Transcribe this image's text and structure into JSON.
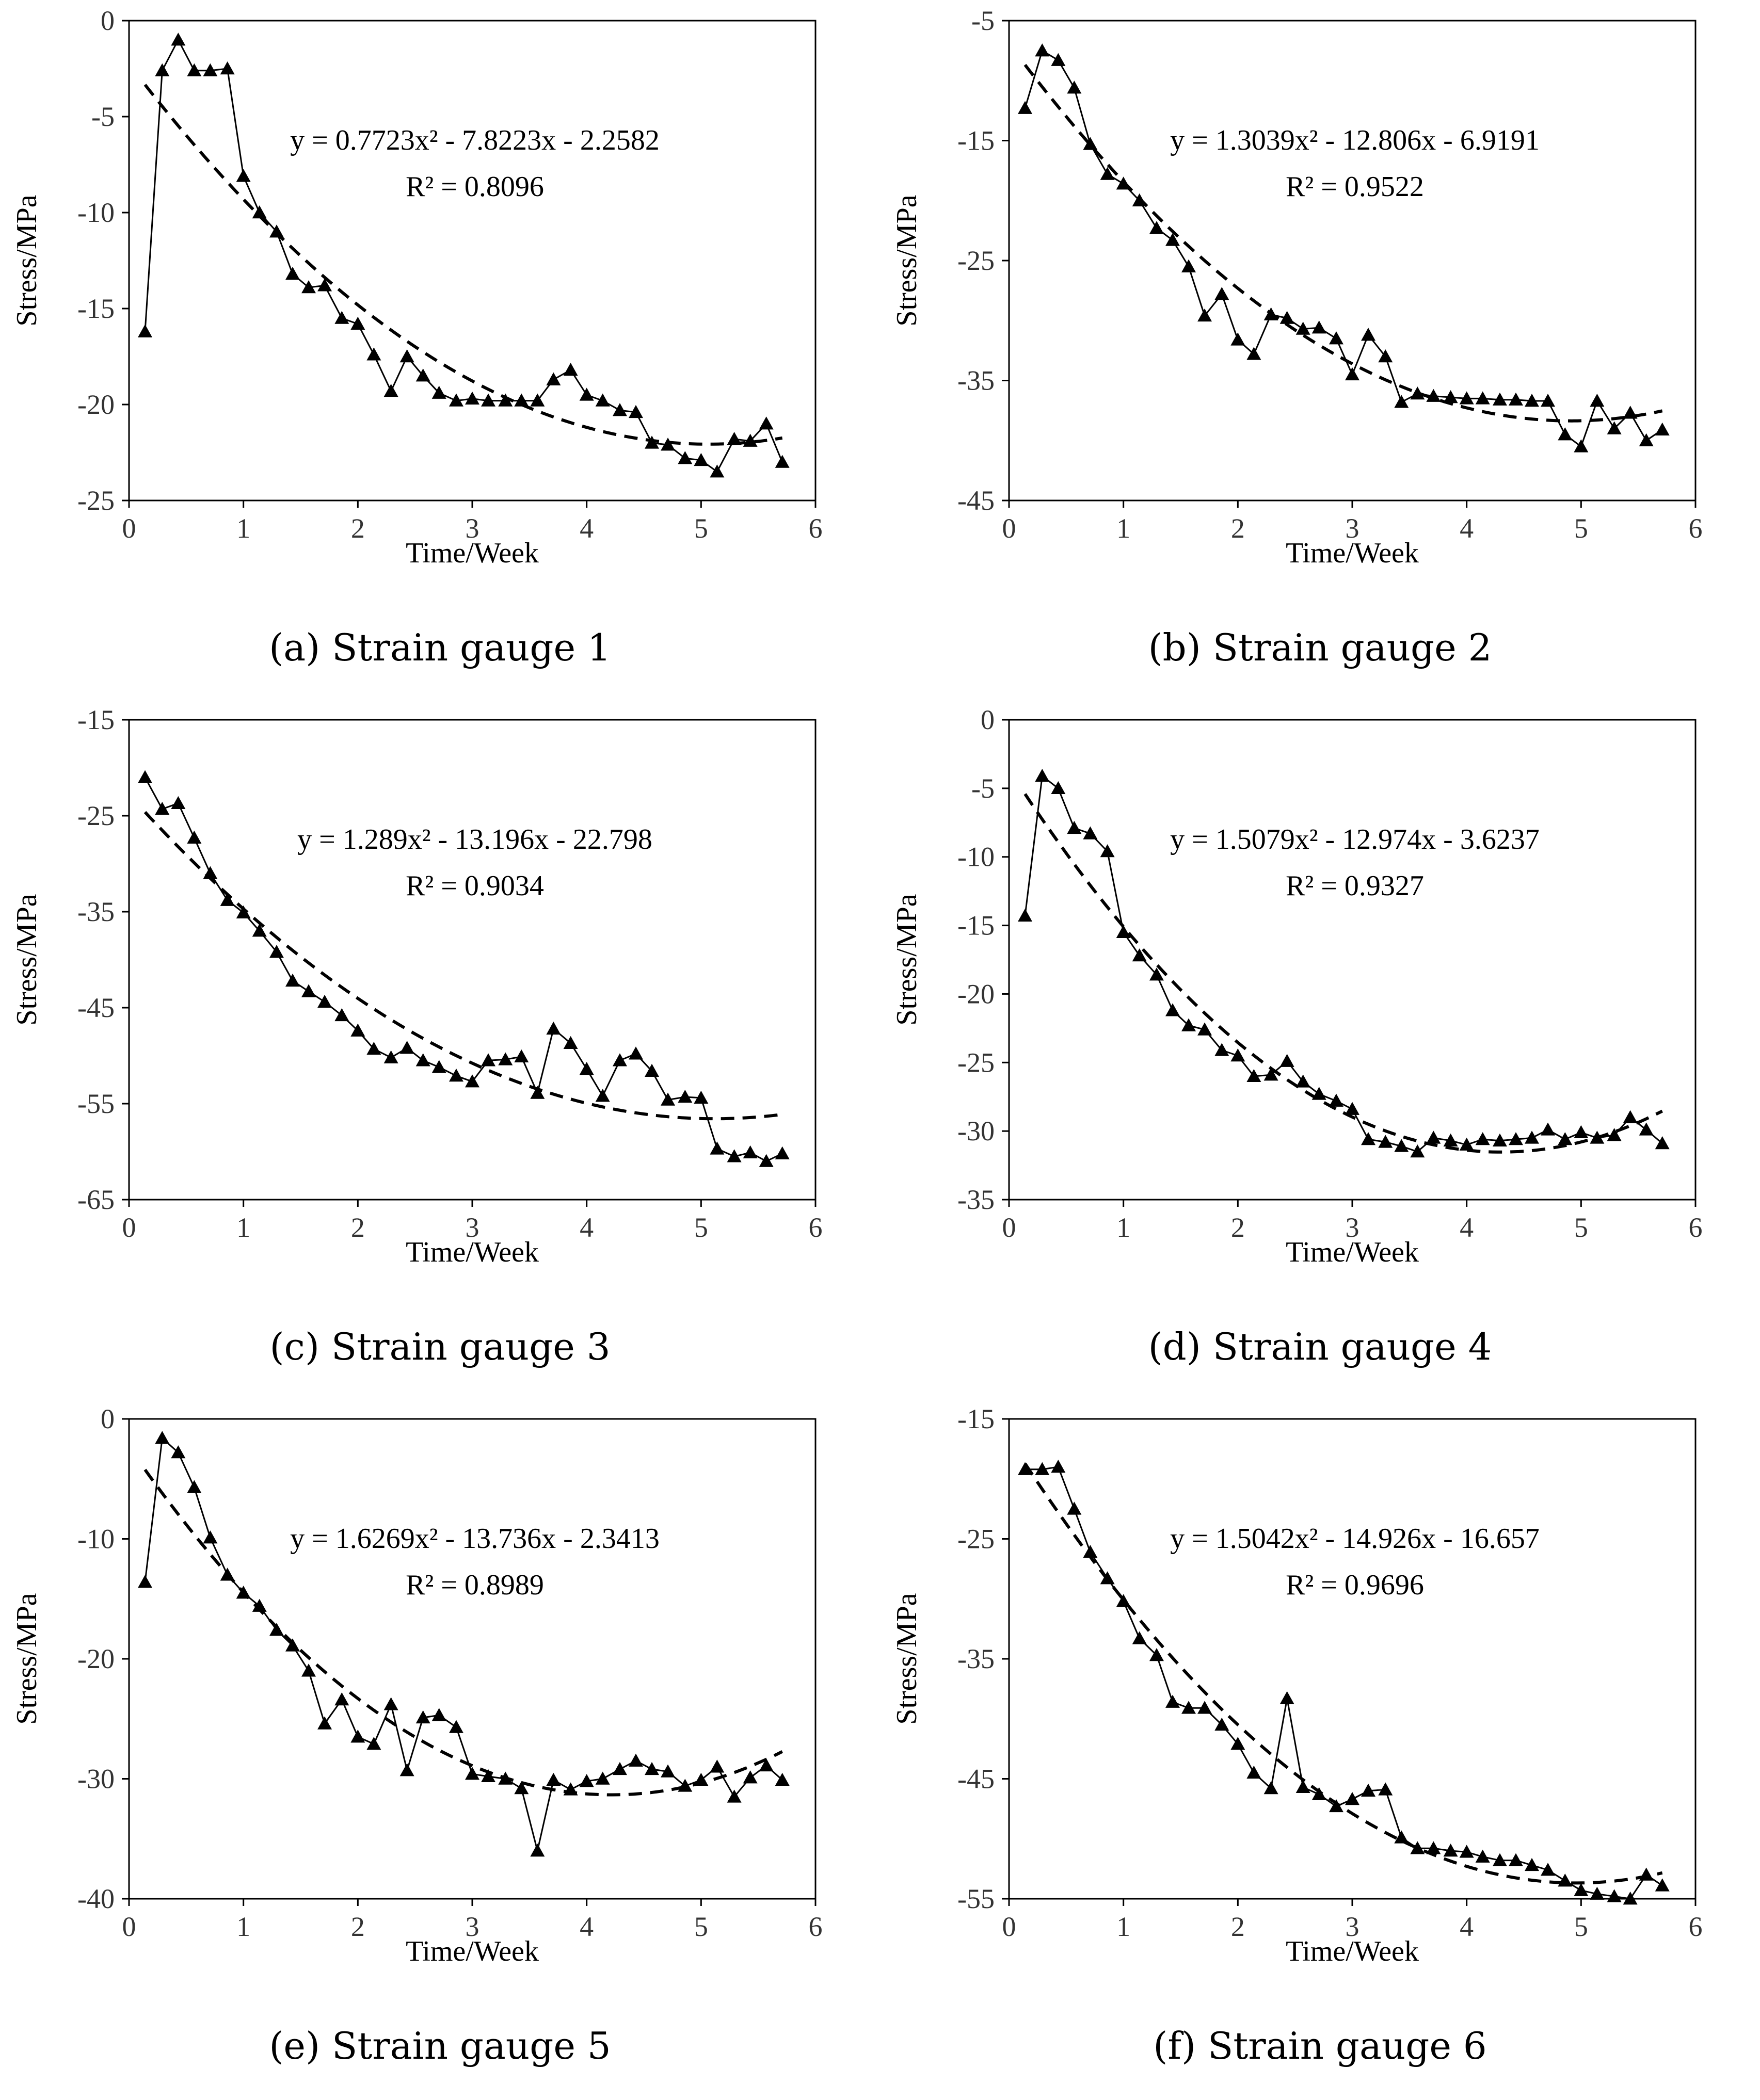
{
  "chart_data": [
    {
      "type": "line",
      "panel_id": "a",
      "caption": "(a) Strain gauge 1",
      "xlabel": "Time/Week",
      "ylabel": "Stress/MPa",
      "xlim": [
        0,
        6
      ],
      "ylim": [
        -25,
        0
      ],
      "xticks": [
        0,
        1,
        2,
        3,
        4,
        5,
        6
      ],
      "yticks": [
        0,
        -5,
        -10,
        -15,
        -20,
        -25
      ],
      "equation": "y = 0.7723x² - 7.8223x - 2.2582",
      "r2": "R² = 0.8096",
      "trend_coeffs": [
        0.7723,
        -7.8223,
        -2.2582
      ],
      "series": [
        {
          "name": "Stress",
          "x": [
            0.14,
            0.29,
            0.43,
            0.57,
            0.71,
            0.86,
            1.0,
            1.14,
            1.29,
            1.43,
            1.57,
            1.71,
            1.86,
            2.0,
            2.14,
            2.29,
            2.43,
            2.57,
            2.71,
            2.86,
            3.0,
            3.14,
            3.29,
            3.43,
            3.57,
            3.71,
            3.86,
            4.0,
            4.14,
            4.29,
            4.43,
            4.57,
            4.71,
            4.86,
            5.0,
            5.14,
            5.29,
            5.43,
            5.57,
            5.71
          ],
          "y": [
            -16.2,
            -2.6,
            -1.0,
            -2.6,
            -2.6,
            -2.5,
            -8.1,
            -10.0,
            -11.0,
            -13.2,
            -13.9,
            -13.8,
            -15.5,
            -15.8,
            -17.4,
            -19.3,
            -17.5,
            -18.5,
            -19.4,
            -19.8,
            -19.7,
            -19.8,
            -19.8,
            -19.8,
            -19.8,
            -18.7,
            -18.2,
            -19.5,
            -19.8,
            -20.3,
            -20.4,
            -22.0,
            -22.1,
            -22.8,
            -22.9,
            -23.5,
            -21.8,
            -21.9,
            -21.0,
            -23.0
          ]
        }
      ]
    },
    {
      "type": "line",
      "panel_id": "b",
      "caption": "(b) Strain gauge 2",
      "xlabel": "Time/Week",
      "ylabel": "Stress/MPa",
      "xlim": [
        0,
        6
      ],
      "ylim": [
        -45,
        -5
      ],
      "xticks": [
        0,
        1,
        2,
        3,
        4,
        5,
        6
      ],
      "yticks": [
        -5,
        -15,
        -25,
        -35,
        -45
      ],
      "equation": "y = 1.3039x² - 12.806x - 6.9191",
      "r2": "R² = 0.9522",
      "trend_coeffs": [
        1.3039,
        -12.806,
        -6.9191
      ],
      "series": [
        {
          "name": "Stress",
          "x": [
            0.14,
            0.29,
            0.43,
            0.57,
            0.71,
            0.86,
            1.0,
            1.14,
            1.29,
            1.43,
            1.57,
            1.71,
            1.86,
            2.0,
            2.14,
            2.29,
            2.43,
            2.57,
            2.71,
            2.86,
            3.0,
            3.14,
            3.29,
            3.43,
            3.57,
            3.71,
            3.86,
            4.0,
            4.14,
            4.29,
            4.43,
            4.57,
            4.71,
            4.86,
            5.0,
            5.14,
            5.29,
            5.43,
            5.57,
            5.71
          ],
          "y": [
            -12.3,
            -7.5,
            -8.3,
            -10.6,
            -15.3,
            -17.8,
            -18.6,
            -20.0,
            -22.3,
            -23.3,
            -25.5,
            -29.6,
            -27.8,
            -31.6,
            -32.8,
            -29.5,
            -29.8,
            -30.7,
            -30.6,
            -31.5,
            -34.5,
            -31.2,
            -33.0,
            -36.8,
            -36.1,
            -36.3,
            -36.4,
            -36.5,
            -36.5,
            -36.6,
            -36.6,
            -36.7,
            -36.7,
            -39.5,
            -40.5,
            -36.7,
            -39.0,
            -37.7,
            -40.0,
            -39.1
          ]
        }
      ]
    },
    {
      "type": "line",
      "panel_id": "c",
      "caption": "(c) Strain gauge 3",
      "xlabel": "Time/Week",
      "ylabel": "Stress/MPa",
      "xlim": [
        0,
        6
      ],
      "ylim": [
        -65,
        -15
      ],
      "xticks": [
        0,
        1,
        2,
        3,
        4,
        5,
        6
      ],
      "yticks": [
        -15,
        -25,
        -35,
        -45,
        -55,
        -65
      ],
      "equation": "y = 1.289x² - 13.196x - 22.798",
      "r2": "R² = 0.9034",
      "trend_coeffs": [
        1.289,
        -13.196,
        -22.798
      ],
      "series": [
        {
          "name": "Stress",
          "x": [
            0.14,
            0.29,
            0.43,
            0.57,
            0.71,
            0.86,
            1.0,
            1.14,
            1.29,
            1.43,
            1.57,
            1.71,
            1.86,
            2.0,
            2.14,
            2.29,
            2.43,
            2.57,
            2.71,
            2.86,
            3.0,
            3.14,
            3.29,
            3.43,
            3.57,
            3.71,
            3.86,
            4.0,
            4.14,
            4.29,
            4.43,
            4.57,
            4.71,
            4.86,
            5.0,
            5.14,
            5.29,
            5.43,
            5.57,
            5.71
          ],
          "y": [
            -21.0,
            -24.3,
            -23.7,
            -27.3,
            -31.0,
            -33.8,
            -35.1,
            -37.0,
            -39.2,
            -42.2,
            -43.3,
            -44.4,
            -45.8,
            -47.4,
            -49.3,
            -50.2,
            -49.2,
            -50.5,
            -51.2,
            -52.1,
            -52.7,
            -50.5,
            -50.4,
            -50.1,
            -53.9,
            -47.2,
            -48.7,
            -51.4,
            -54.2,
            -50.5,
            -49.8,
            -51.6,
            -54.6,
            -54.3,
            -54.4,
            -59.7,
            -60.5,
            -60.1,
            -61.0,
            -60.2
          ]
        }
      ]
    },
    {
      "type": "line",
      "panel_id": "d",
      "caption": "(d) Strain gauge 4",
      "xlabel": "Time/Week",
      "ylabel": "Stress/MPa",
      "xlim": [
        0,
        6
      ],
      "ylim": [
        -35,
        0
      ],
      "xticks": [
        0,
        1,
        2,
        3,
        4,
        5,
        6
      ],
      "yticks": [
        0,
        -5,
        -10,
        -15,
        -20,
        -25,
        -30,
        -35
      ],
      "equation": "y = 1.5079x² - 12.974x - 3.6237",
      "r2": "R² = 0.9327",
      "trend_coeffs": [
        1.5079,
        -12.974,
        -3.6237
      ],
      "series": [
        {
          "name": "Stress",
          "x": [
            0.14,
            0.29,
            0.43,
            0.57,
            0.71,
            0.86,
            1.0,
            1.14,
            1.29,
            1.43,
            1.57,
            1.71,
            1.86,
            2.0,
            2.14,
            2.29,
            2.43,
            2.57,
            2.71,
            2.86,
            3.0,
            3.14,
            3.29,
            3.43,
            3.57,
            3.71,
            3.86,
            4.0,
            4.14,
            4.29,
            4.43,
            4.57,
            4.71,
            4.86,
            5.0,
            5.14,
            5.29,
            5.43,
            5.57,
            5.71
          ],
          "y": [
            -14.3,
            -4.1,
            -5.0,
            -7.9,
            -8.3,
            -9.6,
            -15.5,
            -17.2,
            -18.6,
            -21.2,
            -22.3,
            -22.6,
            -24.1,
            -24.5,
            -26.0,
            -25.9,
            -24.9,
            -26.4,
            -27.3,
            -27.8,
            -28.4,
            -30.6,
            -30.8,
            -31.1,
            -31.5,
            -30.5,
            -30.7,
            -31.0,
            -30.6,
            -30.7,
            -30.6,
            -30.5,
            -29.9,
            -30.6,
            -30.1,
            -30.5,
            -30.3,
            -29.0,
            -29.9,
            -30.9
          ]
        }
      ]
    },
    {
      "type": "line",
      "panel_id": "e",
      "caption": "(e) Strain gauge 5",
      "xlabel": "Time/Week",
      "ylabel": "Stress/MPa",
      "xlim": [
        0,
        6
      ],
      "ylim": [
        -40,
        0
      ],
      "xticks": [
        0,
        1,
        2,
        3,
        4,
        5,
        6
      ],
      "yticks": [
        0,
        -10,
        -20,
        -30,
        -40
      ],
      "equation": "y = 1.6269x² - 13.736x - 2.3413",
      "r2": "R² = 0.8989",
      "trend_coeffs": [
        1.6269,
        -13.736,
        -2.3413
      ],
      "series": [
        {
          "name": "Stress",
          "x": [
            0.14,
            0.29,
            0.43,
            0.57,
            0.71,
            0.86,
            1.0,
            1.14,
            1.29,
            1.43,
            1.57,
            1.71,
            1.86,
            2.0,
            2.14,
            2.29,
            2.43,
            2.57,
            2.71,
            2.86,
            3.0,
            3.14,
            3.29,
            3.43,
            3.57,
            3.71,
            3.86,
            4.0,
            4.14,
            4.29,
            4.43,
            4.57,
            4.71,
            4.86,
            5.0,
            5.14,
            5.29,
            5.43,
            5.57,
            5.71
          ],
          "y": [
            -13.6,
            -1.6,
            -2.8,
            -5.7,
            -9.9,
            -13.0,
            -14.5,
            -15.6,
            -17.6,
            -18.9,
            -21.0,
            -25.4,
            -23.4,
            -26.5,
            -27.1,
            -23.8,
            -29.3,
            -24.9,
            -24.7,
            -25.7,
            -29.6,
            -29.8,
            -30.0,
            -30.8,
            -36.0,
            -30.1,
            -30.9,
            -30.2,
            -30.0,
            -29.2,
            -28.5,
            -29.2,
            -29.4,
            -30.6,
            -30.1,
            -29.0,
            -31.5,
            -29.9,
            -28.9,
            -30.1
          ]
        }
      ]
    },
    {
      "type": "line",
      "panel_id": "f",
      "caption": "(f) Strain gauge 6",
      "xlabel": "Time/Week",
      "ylabel": "Stress/MPa",
      "xlim": [
        0,
        6
      ],
      "ylim": [
        -55,
        -15
      ],
      "xticks": [
        0,
        1,
        2,
        3,
        4,
        5,
        6
      ],
      "yticks": [
        -15,
        -25,
        -35,
        -45,
        -55
      ],
      "equation": "y = 1.5042x² - 14.926x - 16.657",
      "r2": "R² = 0.9696",
      "trend_coeffs": [
        1.5042,
        -14.926,
        -16.657
      ],
      "series": [
        {
          "name": "Stress",
          "x": [
            0.14,
            0.29,
            0.43,
            0.57,
            0.71,
            0.86,
            1.0,
            1.14,
            1.29,
            1.43,
            1.57,
            1.71,
            1.86,
            2.0,
            2.14,
            2.29,
            2.43,
            2.57,
            2.71,
            2.86,
            3.0,
            3.14,
            3.29,
            3.43,
            3.57,
            3.71,
            3.86,
            4.0,
            4.14,
            4.29,
            4.43,
            4.57,
            4.71,
            4.86,
            5.0,
            5.14,
            5.29,
            5.43,
            5.57,
            5.71
          ],
          "y": [
            -19.2,
            -19.2,
            -19.0,
            -22.5,
            -26.1,
            -28.3,
            -30.2,
            -33.3,
            -34.7,
            -38.6,
            -39.1,
            -39.1,
            -40.5,
            -42.1,
            -44.5,
            -45.8,
            -38.3,
            -45.7,
            -46.3,
            -47.3,
            -46.7,
            -46.0,
            -45.9,
            -49.9,
            -50.8,
            -50.8,
            -51.0,
            -51.1,
            -51.5,
            -51.8,
            -51.8,
            -52.2,
            -52.6,
            -53.5,
            -54.3,
            -54.6,
            -54.8,
            -55.0,
            -53.0,
            -53.9
          ]
        }
      ]
    }
  ]
}
